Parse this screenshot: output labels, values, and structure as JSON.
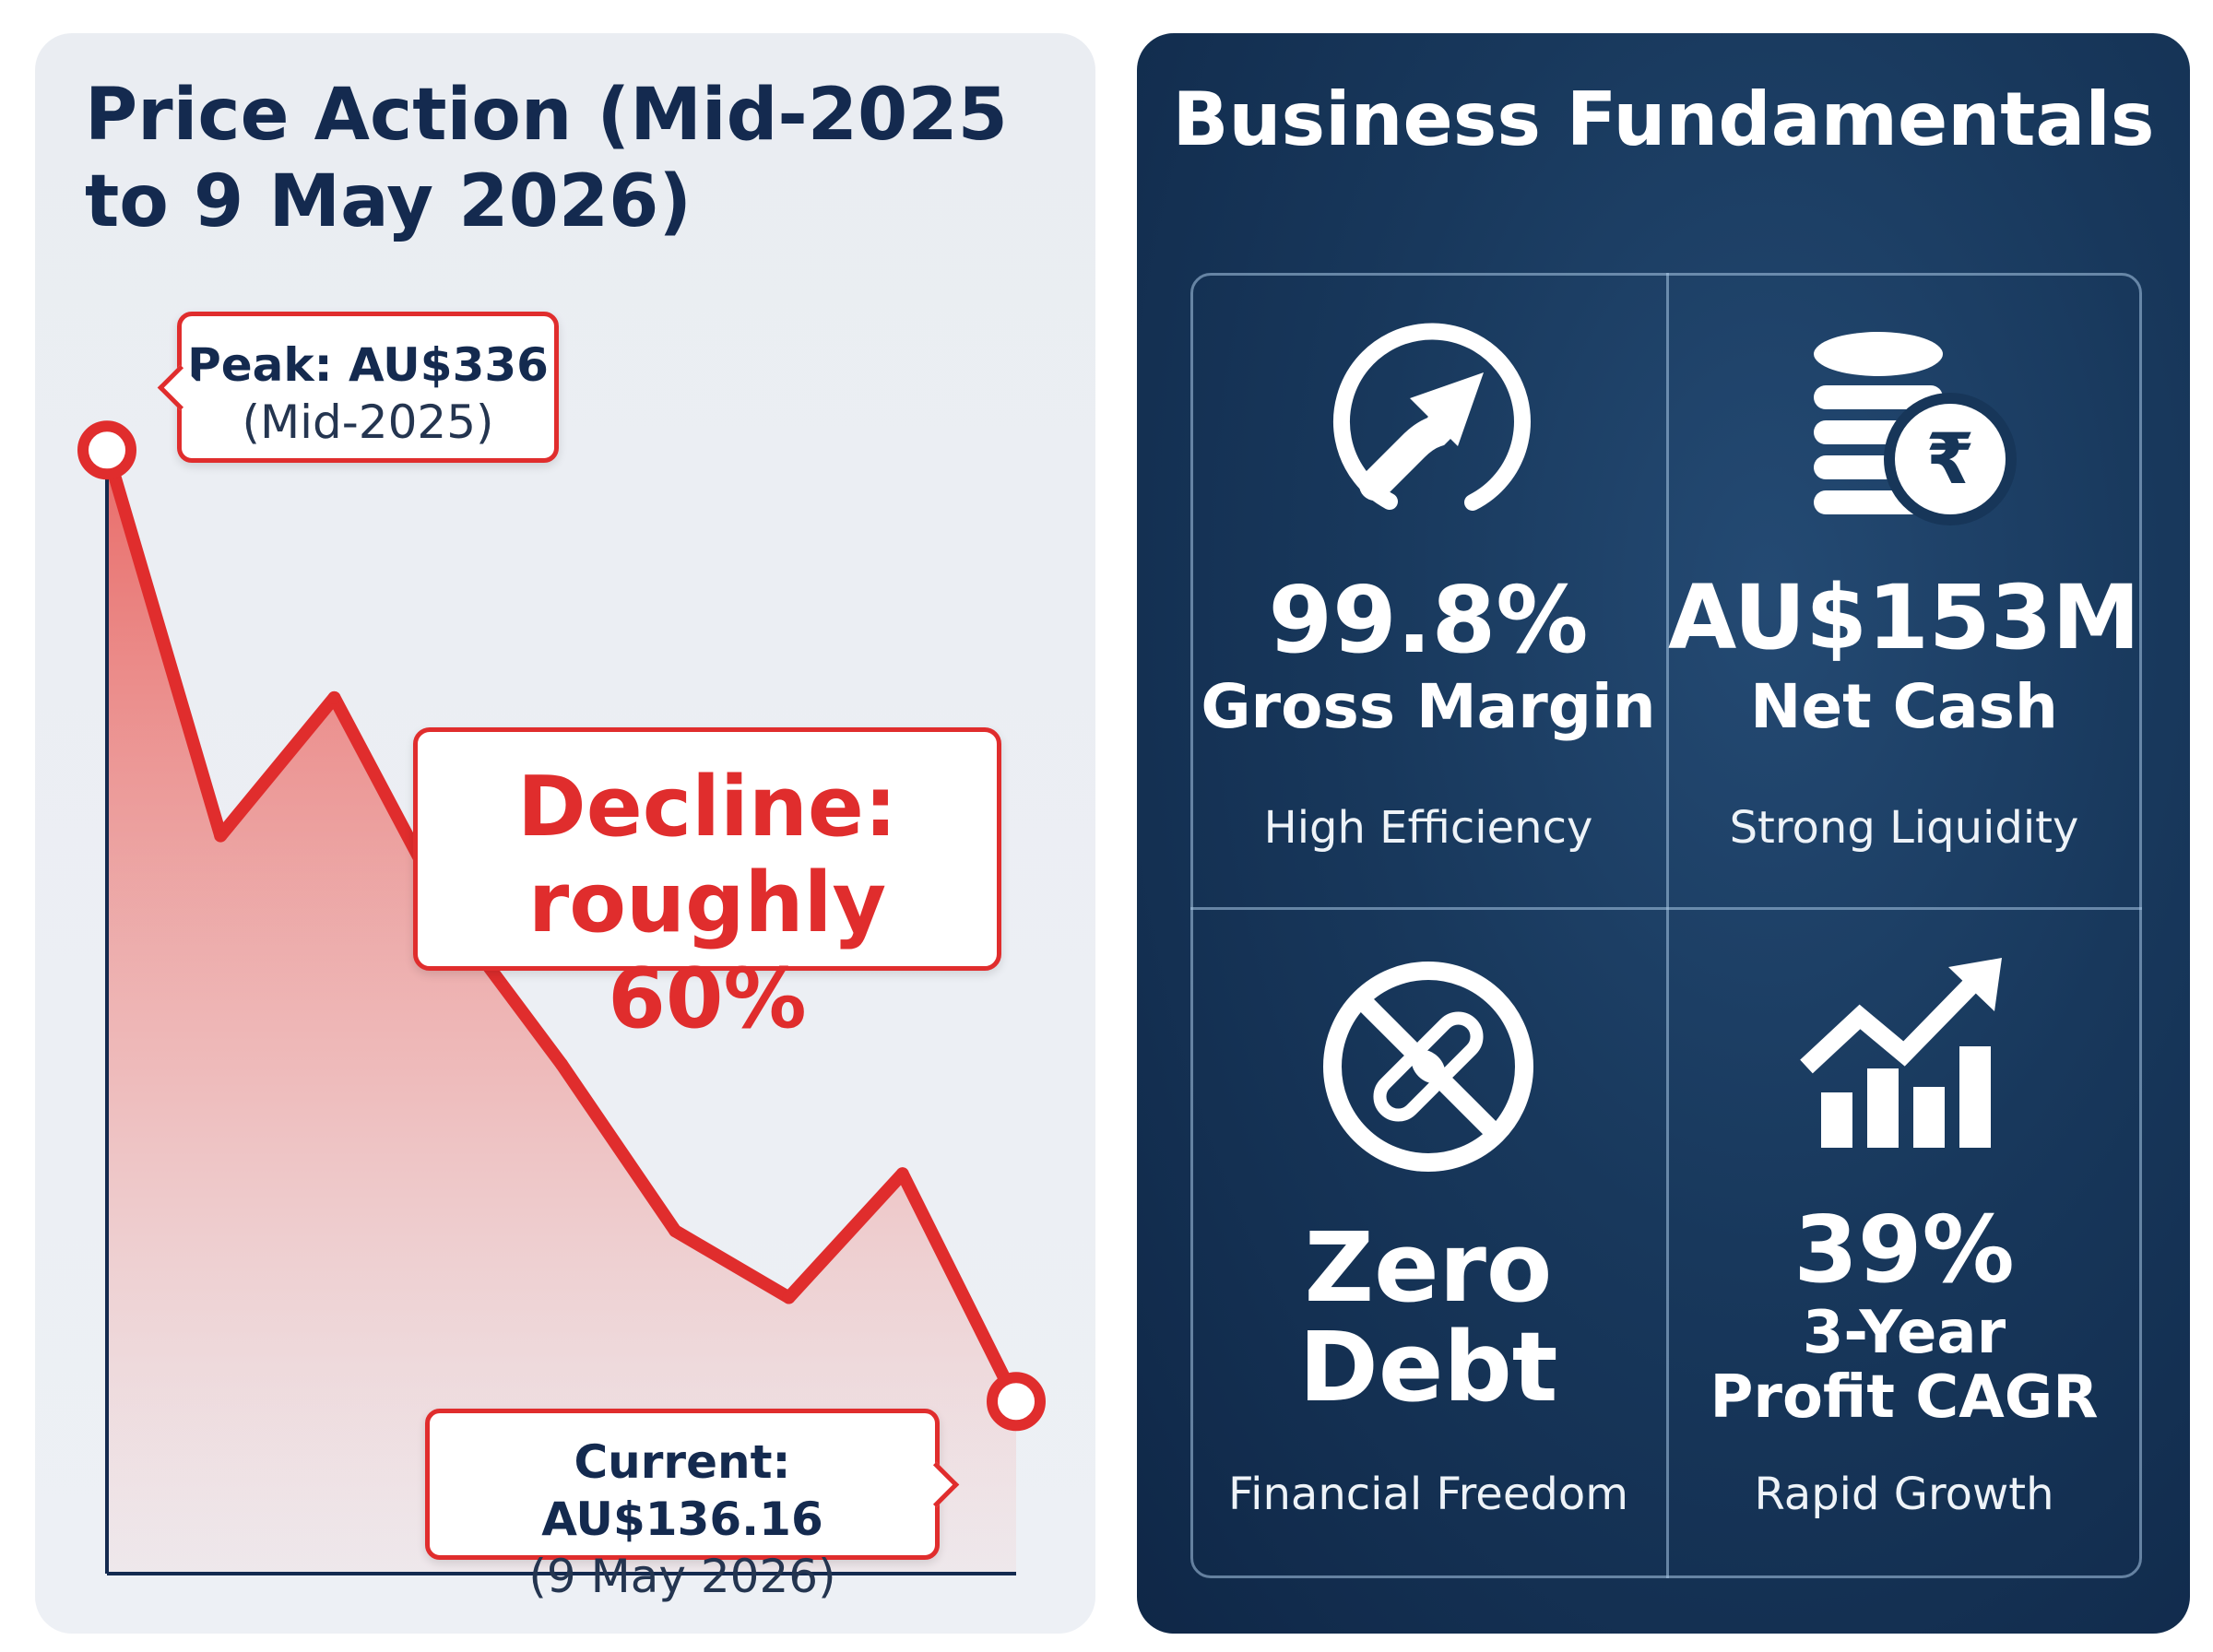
{
  "colors": {
    "accent_red": "#e02d2d",
    "title_navy": "#142a4f",
    "panel_light": "#eaedf2",
    "panel_dark": "#18385c",
    "text_white": "#ffffff"
  },
  "price_action": {
    "title": "Price Action (Mid-2025 to 9 May 2026)",
    "peak": {
      "label": "Peak: AU$336",
      "sub": "(Mid-2025)"
    },
    "current": {
      "label": "Current: AU$136.16",
      "sub": "(9 May 2026)"
    },
    "decline": {
      "line1": "Decline:",
      "line2": "roughly 60%"
    }
  },
  "chart_data": {
    "type": "line",
    "title": "Price Action (Mid-2025 to 9 May 2026)",
    "x": [
      "Mid-2025",
      "",
      "",
      "",
      "",
      "",
      "",
      "",
      "9 May 2026"
    ],
    "y": [
      336,
      255,
      284,
      239,
      207,
      172,
      158,
      184,
      136.16
    ],
    "ylim": [
      100,
      350
    ],
    "xlabel": "",
    "ylabel": "",
    "grid": false,
    "annotations": [
      "Peak: AU$336 (Mid-2025)",
      "Current: AU$136.16 (9 May 2026)",
      "Decline: roughly 60%"
    ]
  },
  "fundamentals": {
    "title": "Business Fundamentals",
    "cards": [
      {
        "icon": "trending-up-circle-icon",
        "value": "99.8%",
        "label": "Gross Margin",
        "desc": "High Efficiency"
      },
      {
        "icon": "coins-rupee-icon",
        "value": "AU$153M",
        "label": "Net Cash",
        "desc": "Strong Liquidity"
      },
      {
        "icon": "no-debt-chain-icon",
        "value": "Zero",
        "value2": "Debt",
        "desc": "Financial Freedom"
      },
      {
        "icon": "growth-bars-icon",
        "value": "39%",
        "label": "3-Year",
        "label2": "Profit CAGR",
        "desc": "Rapid Growth"
      }
    ]
  }
}
